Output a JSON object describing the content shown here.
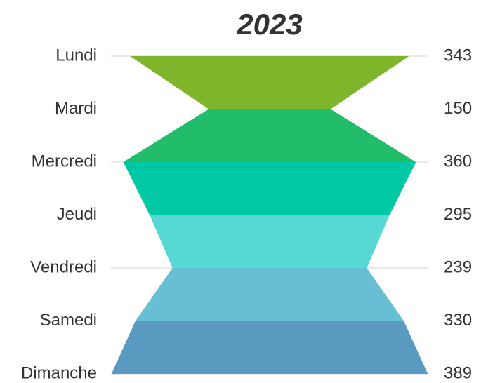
{
  "chart_data": {
    "type": "funnel",
    "title": "2023",
    "categories": [
      "Lundi",
      "Mardi",
      "Mercredi",
      "Jeudi",
      "Vendredi",
      "Samedi",
      "Dimanche"
    ],
    "values": [
      343,
      150,
      360,
      295,
      239,
      330,
      389
    ],
    "colors": [
      "#7fb52b",
      "#22bd6b",
      "#00c8a4",
      "#56d8d4",
      "#68bfd3",
      "#5a99c0"
    ]
  }
}
